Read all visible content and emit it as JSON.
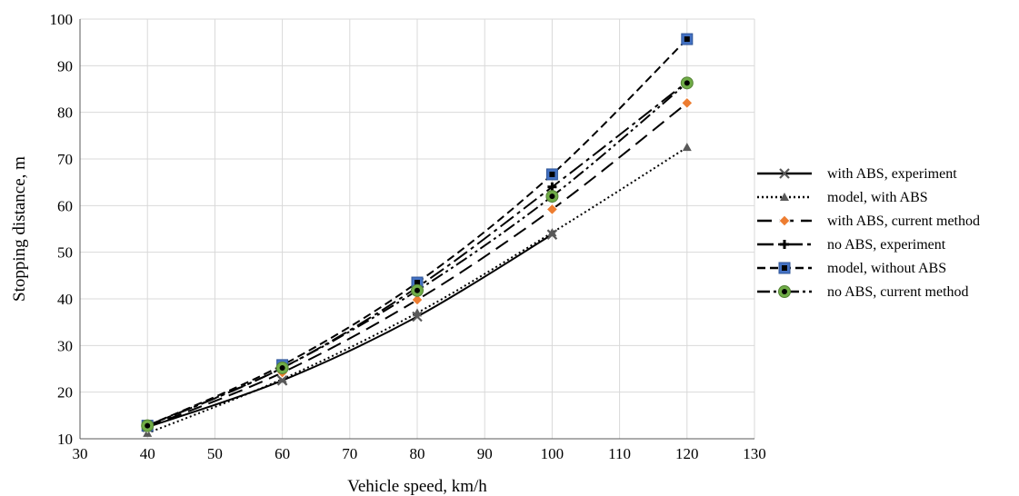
{
  "chart_data": {
    "type": "line",
    "xlabel": "Vehicle speed, km/h",
    "ylabel": "Stopping distance, m",
    "xlim": [
      30,
      130
    ],
    "ylim": [
      10,
      100
    ],
    "x_ticks": [
      30,
      40,
      50,
      60,
      70,
      80,
      90,
      100,
      110,
      120,
      130
    ],
    "y_ticks": [
      10,
      20,
      30,
      40,
      50,
      60,
      70,
      80,
      90,
      100
    ],
    "grid": true,
    "legend_position": "right",
    "series": [
      {
        "name": "with ABS, experiment",
        "x": [
          40,
          60,
          80,
          100
        ],
        "y": [
          12.5,
          22.5,
          36.2,
          53.8
        ],
        "line_style": "solid",
        "marker": "x",
        "color": "#000000"
      },
      {
        "name": "model, with ABS",
        "x": [
          40,
          60,
          80,
          100,
          120
        ],
        "y": [
          11.2,
          22.8,
          37.0,
          54.2,
          72.5
        ],
        "line_style": "dotted",
        "marker": "triangle",
        "color": "#595959"
      },
      {
        "name": "with ABS, current method",
        "x": [
          40,
          60,
          80,
          100,
          120
        ],
        "y": [
          12.5,
          24.2,
          39.8,
          59.2,
          82.0
        ],
        "line_style": "long-dash",
        "marker": "diamond",
        "color": "#ed7d31"
      },
      {
        "name": "no ABS, experiment",
        "x": [
          40,
          60,
          80,
          100,
          120
        ],
        "y": [
          12.8,
          25.2,
          42.5,
          64.0,
          86.5
        ],
        "line_style": "dash-dot",
        "marker": "plus",
        "color": "#000000"
      },
      {
        "name": "model, without ABS",
        "x": [
          40,
          60,
          80,
          100,
          120
        ],
        "y": [
          12.8,
          25.8,
          43.5,
          66.7,
          95.7
        ],
        "line_style": "dashed",
        "marker": "square",
        "color": "#4472c4"
      },
      {
        "name": "no ABS, current method",
        "x": [
          40,
          60,
          80,
          100,
          120
        ],
        "y": [
          12.8,
          25.2,
          41.8,
          62.0,
          86.3
        ],
        "line_style": "dash-dot-dot",
        "marker": "circle",
        "color": "#70ad47"
      }
    ]
  }
}
